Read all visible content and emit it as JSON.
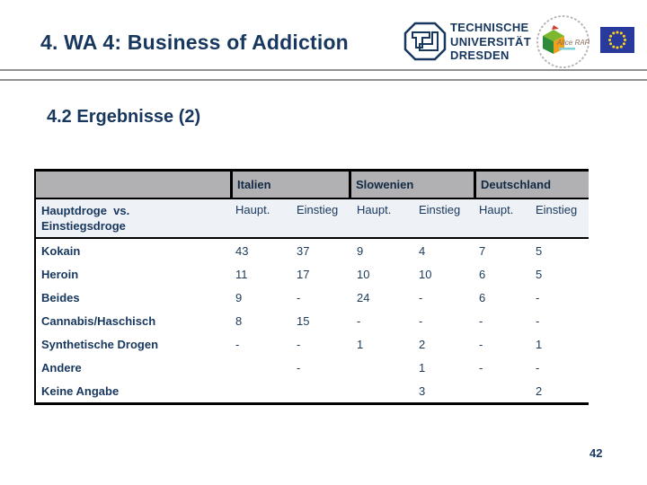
{
  "slide": {
    "title": "4. WA 4: Business of Addiction",
    "subtitle": "4.2 Ergebnisse (2)",
    "page_number": "42"
  },
  "header_logos": {
    "tud": {
      "lines": [
        "TECHNISCHE",
        "UNIVERSITÄT",
        "DRESDEN"
      ]
    },
    "alice_rap": {
      "label": "Alice RAP"
    },
    "eu_flag": {
      "name": "eu-flag",
      "stars": 12
    }
  },
  "table": {
    "country_groups": [
      "Italien",
      "Slowenien",
      "Deutschland"
    ],
    "row_header_line1": "Hauptdroge  vs.",
    "row_header_line2": "Einstiegsdroge",
    "sub_headers": [
      "Haupt.",
      "Einstieg",
      "Haupt.",
      "Einstieg",
      "Haupt.",
      "Einstieg"
    ],
    "rows": [
      {
        "label": "Kokain",
        "values": [
          "43",
          "37",
          "9",
          "4",
          "7",
          "5"
        ]
      },
      {
        "label": "Heroin",
        "values": [
          "11",
          "17",
          "10",
          "10",
          "6",
          "5"
        ]
      },
      {
        "label": "Beides",
        "values": [
          "9",
          "-",
          "24",
          "-",
          "6",
          "-"
        ]
      },
      {
        "label": "Cannabis/Haschisch",
        "values": [
          "8",
          "15",
          "-",
          "-",
          "-",
          "-"
        ]
      },
      {
        "label": "Synthetische Drogen",
        "values": [
          "-",
          "-",
          "1",
          "2",
          "-",
          "1"
        ]
      },
      {
        "label": "Andere",
        "values": [
          "",
          "-",
          "",
          "1",
          "-",
          "-"
        ]
      },
      {
        "label": "Keine Angabe",
        "values": [
          "",
          "",
          "",
          "3",
          "",
          "2"
        ]
      }
    ]
  },
  "colors": {
    "navy": "#17375e",
    "header_gray": "#b1b1b4",
    "subheader_bg": "#eef1f5",
    "rule_gray": "#919191",
    "eu_blue": "#2a3a9c",
    "star_yellow": "#ffd617"
  }
}
